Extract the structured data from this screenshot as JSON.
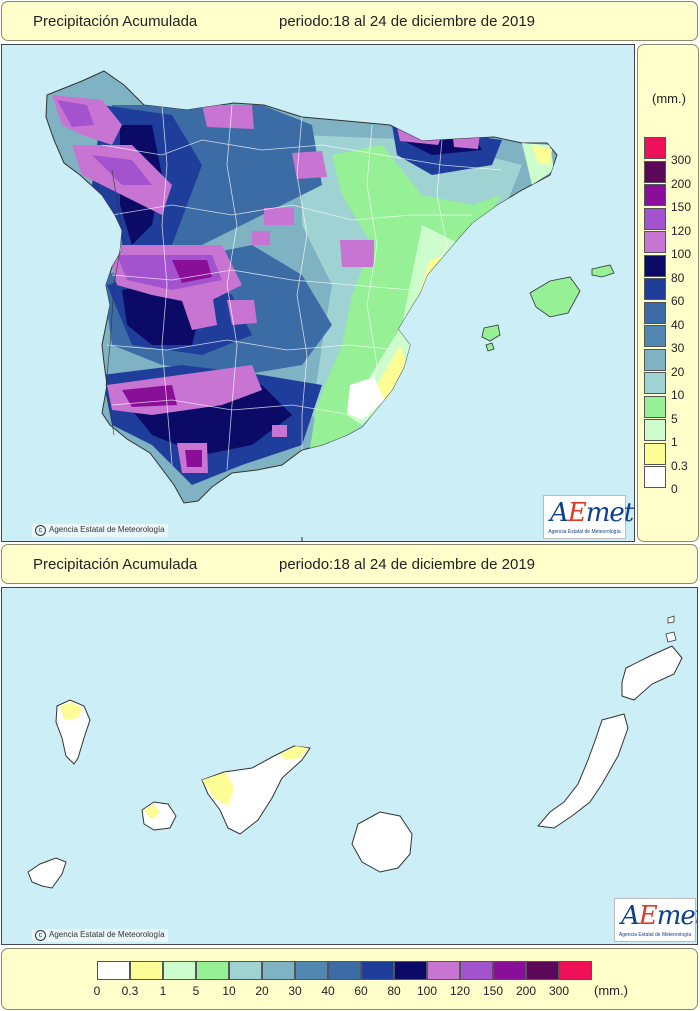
{
  "peninsula": {
    "title": "Precipitación Acumulada",
    "period": "periodo:18 al 24 de diciembre de 2019",
    "copyright": "Agencia Estatal de Meteorología",
    "logo": {
      "name_a": "A",
      "name_e": "E",
      "name_rest": "met",
      "subtitle": "Agencia Estatal de Meteorología"
    }
  },
  "canarias": {
    "title": "Precipitación Acumulada",
    "period": "periodo:18 al 24 de diciembre de 2019",
    "copyright": "Agencia Estatal de Meteorología",
    "logo": {
      "name_a": "A",
      "name_e": "E",
      "name_rest": "met",
      "subtitle": "Agencia Estatal de Meteorología"
    }
  },
  "legend": {
    "unit": "(mm.)",
    "bins": [
      {
        "label": "0",
        "color": "#ffffff"
      },
      {
        "label": "0.3",
        "color": "#fdfd96"
      },
      {
        "label": "1",
        "color": "#cdfdcd"
      },
      {
        "label": "5",
        "color": "#96f096"
      },
      {
        "label": "10",
        "color": "#9fd2d2"
      },
      {
        "label": "20",
        "color": "#7fb3c3"
      },
      {
        "label": "30",
        "color": "#5187b0"
      },
      {
        "label": "40",
        "color": "#3c6ca5"
      },
      {
        "label": "60",
        "color": "#1f3e9c"
      },
      {
        "label": "80",
        "color": "#0b0a66"
      },
      {
        "label": "100",
        "color": "#c874d2"
      },
      {
        "label": "120",
        "color": "#a453cf"
      },
      {
        "label": "150",
        "color": "#8a0f98"
      },
      {
        "label": "200",
        "color": "#5b0858"
      },
      {
        "label": "300",
        "color": "#f0105a"
      }
    ]
  }
}
